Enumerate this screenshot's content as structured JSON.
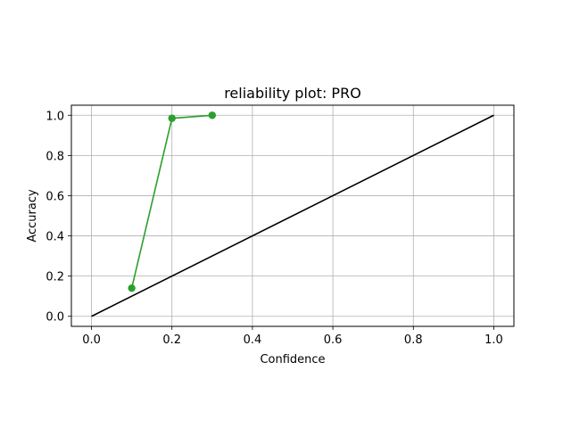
{
  "chart_data": {
    "type": "line",
    "title": "reliability plot: PRO",
    "xlabel": "Confidence",
    "ylabel": "Accuracy",
    "xlim": [
      -0.05,
      1.05
    ],
    "ylim": [
      -0.05,
      1.05
    ],
    "xticks": [
      "0.0",
      "0.2",
      "0.4",
      "0.6",
      "0.8",
      "1.0"
    ],
    "yticks": [
      "0.0",
      "0.2",
      "0.4",
      "0.6",
      "0.8",
      "1.0"
    ],
    "grid": true,
    "series": [
      {
        "x": [
          0.1,
          0.2,
          0.3
        ],
        "y": [
          0.14,
          0.985,
          1.0
        ],
        "color": "#2ca02c",
        "marker": "circle"
      },
      {
        "x": [
          0.0,
          1.0
        ],
        "y": [
          0.0,
          1.0
        ],
        "color": "#000000",
        "marker": "none"
      }
    ]
  }
}
